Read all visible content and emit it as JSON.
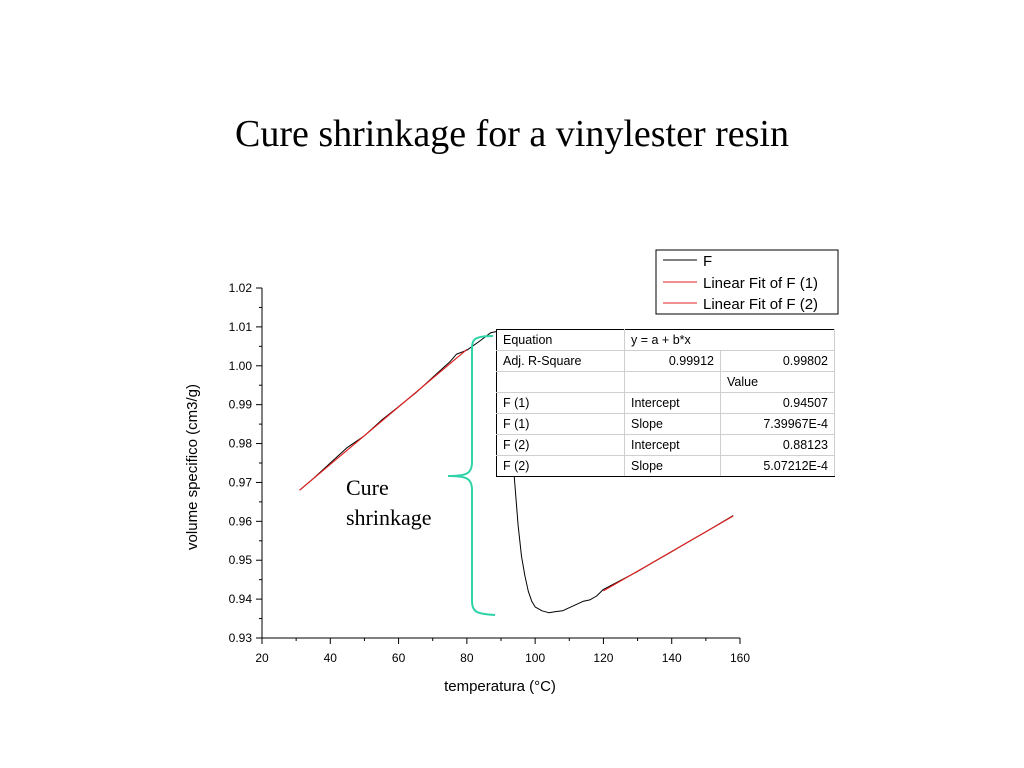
{
  "slide": {
    "title": "Cure shrinkage for a vinylester resin"
  },
  "annotation": {
    "line1": "Cure",
    "line2": "shrinkage",
    "bracket_color": "#2fd3a8"
  },
  "chart_data": {
    "type": "line",
    "xlabel": "temperatura (°C)",
    "ylabel": "volume specifico (cm3/g)",
    "xlim": [
      20,
      160
    ],
    "ylim": [
      0.93,
      1.02
    ],
    "xticks": [
      "20",
      "40",
      "60",
      "80",
      "100",
      "120",
      "140",
      "160"
    ],
    "yticks": [
      "0.93",
      "0.94",
      "0.95",
      "0.96",
      "0.97",
      "0.98",
      "0.99",
      "1.00",
      "1.01",
      "1.02"
    ],
    "legend_position": "top-right",
    "legend": [
      "F",
      "Linear Fit of F (1)",
      "Linear Fit of F (2)"
    ],
    "series": [
      {
        "name": "F",
        "color": "#000000",
        "x": [
          31,
          35,
          40,
          45,
          50,
          55,
          60,
          65,
          70,
          75,
          77,
          80,
          84,
          87,
          88.5,
          90,
          91,
          92,
          93,
          94,
          95,
          96,
          97,
          98,
          99,
          100,
          102,
          104,
          106,
          108,
          110,
          112,
          114,
          116,
          118,
          120,
          125,
          130,
          135,
          140,
          145,
          150,
          155,
          158
        ],
        "y": [
          0.968,
          0.971,
          0.975,
          0.979,
          0.982,
          0.986,
          0.9895,
          0.993,
          0.997,
          1.001,
          1.003,
          1.004,
          1.0065,
          1.0085,
          1.0088,
          1.0075,
          1.003,
          0.994,
          0.982,
          0.97,
          0.959,
          0.951,
          0.946,
          0.942,
          0.9395,
          0.938,
          0.937,
          0.9365,
          0.9368,
          0.937,
          0.9378,
          0.9386,
          0.9394,
          0.9398,
          0.9408,
          0.9425,
          0.9448,
          0.9471,
          0.9497,
          0.9522,
          0.9548,
          0.9573,
          0.9599,
          0.9615
        ]
      },
      {
        "name": "Linear Fit of F (1)",
        "color": "#e02020",
        "x": [
          31,
          80
        ],
        "y": [
          0.96801,
          1.0042
        ]
      },
      {
        "name": "Linear Fit of F (2)",
        "color": "#e02020",
        "x": [
          120,
          158
        ],
        "y": [
          0.9421,
          0.96137
        ]
      }
    ],
    "fit_table": {
      "header": [
        "Equation",
        "y = a + b*x"
      ],
      "r_square": {
        "label": "Adj. R-Square",
        "values": [
          "0.99912",
          "0.99802"
        ]
      },
      "value_header": "Value",
      "rows": [
        {
          "series": "F (1)",
          "param": "Intercept",
          "value": "0.94507"
        },
        {
          "series": "F (1)",
          "param": "Slope",
          "value": "7.39967E-4"
        },
        {
          "series": "F (2)",
          "param": "Intercept",
          "value": "0.88123"
        },
        {
          "series": "F (2)",
          "param": "Slope",
          "value": "5.07212E-4"
        }
      ]
    }
  }
}
